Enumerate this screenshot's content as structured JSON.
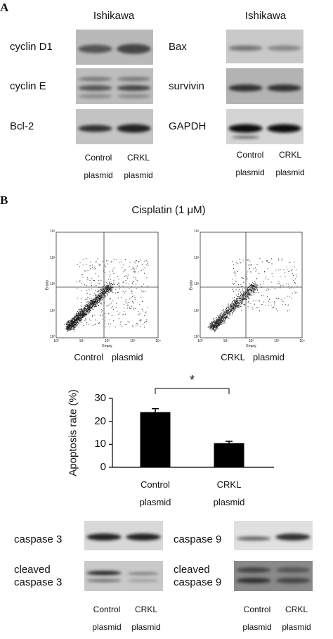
{
  "panel_a": {
    "label": "A",
    "left": {
      "cell_line": "Ishikawa",
      "proteins": [
        "cyclin D1",
        "cyclin E",
        "Bcl-2"
      ],
      "lanes": [
        "Control plasmid",
        "CRKL plasmid"
      ]
    },
    "right": {
      "cell_line": "Ishikawa",
      "proteins": [
        "Bax",
        "survivin",
        "GAPDH"
      ],
      "lanes": [
        "Control plasmid",
        "CRKL plasmid"
      ]
    }
  },
  "panel_b": {
    "label": "B",
    "treatment": "Cisplatin (1 μM)",
    "flow_plots": [
      {
        "caption": "Control plasmid",
        "x_label": "Empty",
        "y_label": "Empty",
        "ticks": [
          "10⁰",
          "10¹",
          "10²",
          "10³",
          "10⁴"
        ]
      },
      {
        "caption": "CRKL plasmid",
        "x_label": "Empty",
        "y_label": "Empty",
        "ticks": [
          "10⁰",
          "10¹",
          "10²",
          "10³",
          "10⁴"
        ]
      }
    ],
    "blots": {
      "left": {
        "proteins": [
          "caspase 3",
          "cleaved caspase 3"
        ],
        "lanes": [
          "Control plasmid",
          "CRKL plasmid"
        ]
      },
      "right": {
        "proteins": [
          "caspase 9",
          "cleaved caspase 9"
        ],
        "lanes": [
          "Control plasmid",
          "CRKL plasmid"
        ]
      }
    }
  },
  "chart_data": {
    "type": "bar",
    "y_label": "Apoptosis rate (%)",
    "categories": [
      "Control plasmid",
      "CRKL plasmid"
    ],
    "values": [
      24,
      10.5
    ],
    "errors": [
      1.5,
      0.8
    ],
    "color": "#000000",
    "ylim": [
      0,
      30
    ],
    "yticks": [
      0,
      10,
      20,
      30
    ],
    "annotation": "*"
  }
}
